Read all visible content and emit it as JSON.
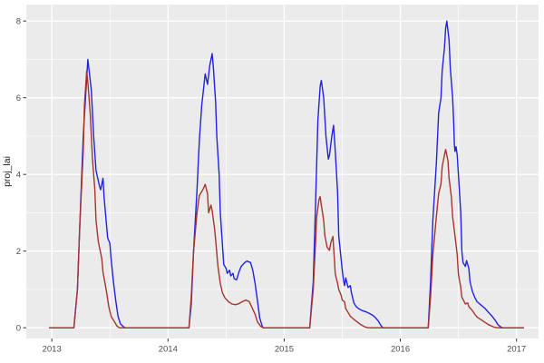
{
  "chart_data": {
    "type": "line",
    "title": "",
    "xlabel": "",
    "ylabel": "proj_lai",
    "grid": true,
    "legend_position": "none",
    "panel_bg": "#EBEBEB",
    "grid_color": "#FFFFFF",
    "tick_label_color": "#4D4D4D",
    "tick_mark_color": "#333333",
    "axis_title_color": "#1A1A1A",
    "x_domain": [
      2012.78,
      2017.19
    ],
    "y_domain": [
      -0.28,
      8.43
    ],
    "x_ticks": [
      2013,
      2014,
      2015,
      2016,
      2017
    ],
    "x_tick_labels": [
      "2013",
      "2014",
      "2015",
      "2016",
      "2017"
    ],
    "x_minor_ticks": [
      2013.5,
      2014.5,
      2015.5,
      2016.5
    ],
    "y_ticks": [
      0,
      2,
      4,
      6,
      8
    ],
    "y_tick_labels": [
      "0",
      "2",
      "4",
      "6",
      "8"
    ],
    "y_minor_ticks": [
      1,
      3,
      5,
      7
    ],
    "series": [
      {
        "name": "blue-series",
        "color": "#2121E2",
        "width": 1.4,
        "points": [
          [
            2012.98,
            0
          ],
          [
            2013.19,
            0
          ],
          [
            2013.22,
            1.0
          ],
          [
            2013.24,
            2.6
          ],
          [
            2013.27,
            5.0
          ],
          [
            2013.3,
            6.5
          ],
          [
            2013.31,
            7.0
          ],
          [
            2013.34,
            6.2
          ],
          [
            2013.36,
            5.0
          ],
          [
            2013.38,
            4.1
          ],
          [
            2013.41,
            3.7
          ],
          [
            2013.42,
            3.6
          ],
          [
            2013.44,
            3.9
          ],
          [
            2013.45,
            3.4
          ],
          [
            2013.47,
            2.7
          ],
          [
            2013.48,
            2.35
          ],
          [
            2013.5,
            2.2
          ],
          [
            2013.51,
            1.8
          ],
          [
            2013.53,
            1.2
          ],
          [
            2013.55,
            0.7
          ],
          [
            2013.57,
            0.3
          ],
          [
            2013.59,
            0.1
          ],
          [
            2013.62,
            0.02
          ],
          [
            2013.63,
            0
          ],
          [
            2014.18,
            0
          ],
          [
            2014.2,
            0.6
          ],
          [
            2014.22,
            2.0
          ],
          [
            2014.25,
            3.6
          ],
          [
            2014.27,
            4.9
          ],
          [
            2014.29,
            5.8
          ],
          [
            2014.32,
            6.62
          ],
          [
            2014.34,
            6.35
          ],
          [
            2014.36,
            6.85
          ],
          [
            2014.38,
            7.15
          ],
          [
            2014.39,
            6.8
          ],
          [
            2014.41,
            5.9
          ],
          [
            2014.42,
            5.0
          ],
          [
            2014.44,
            4.0
          ],
          [
            2014.45,
            3.0
          ],
          [
            2014.47,
            2.1
          ],
          [
            2014.48,
            1.65
          ],
          [
            2014.5,
            1.55
          ],
          [
            2014.51,
            1.42
          ],
          [
            2014.53,
            1.5
          ],
          [
            2014.54,
            1.35
          ],
          [
            2014.56,
            1.42
          ],
          [
            2014.57,
            1.28
          ],
          [
            2014.59,
            1.25
          ],
          [
            2014.61,
            1.45
          ],
          [
            2014.63,
            1.6
          ],
          [
            2014.66,
            1.7
          ],
          [
            2014.68,
            1.74
          ],
          [
            2014.71,
            1.7
          ],
          [
            2014.73,
            1.5
          ],
          [
            2014.75,
            1.15
          ],
          [
            2014.77,
            0.7
          ],
          [
            2014.79,
            0.25
          ],
          [
            2014.81,
            0.05
          ],
          [
            2014.82,
            0
          ],
          [
            2015.22,
            0
          ],
          [
            2015.25,
            1.2
          ],
          [
            2015.27,
            3.2
          ],
          [
            2015.29,
            5.4
          ],
          [
            2015.31,
            6.3
          ],
          [
            2015.32,
            6.45
          ],
          [
            2015.34,
            6.0
          ],
          [
            2015.36,
            5.0
          ],
          [
            2015.38,
            4.4
          ],
          [
            2015.39,
            4.5
          ],
          [
            2015.41,
            5.0
          ],
          [
            2015.425,
            5.28
          ],
          [
            2015.44,
            4.6
          ],
          [
            2015.46,
            3.5
          ],
          [
            2015.47,
            2.4
          ],
          [
            2015.49,
            1.8
          ],
          [
            2015.5,
            1.5
          ],
          [
            2015.51,
            1.25
          ],
          [
            2015.52,
            1.1
          ],
          [
            2015.53,
            1.3
          ],
          [
            2015.55,
            1.05
          ],
          [
            2015.57,
            1.1
          ],
          [
            2015.58,
            0.9
          ],
          [
            2015.6,
            0.65
          ],
          [
            2015.62,
            0.55
          ],
          [
            2015.64,
            0.5
          ],
          [
            2015.67,
            0.45
          ],
          [
            2015.7,
            0.42
          ],
          [
            2015.73,
            0.38
          ],
          [
            2015.76,
            0.33
          ],
          [
            2015.78,
            0.28
          ],
          [
            2015.81,
            0.18
          ],
          [
            2015.83,
            0.07
          ],
          [
            2015.85,
            0
          ],
          [
            2016.24,
            0
          ],
          [
            2016.26,
            1.2
          ],
          [
            2016.28,
            2.8
          ],
          [
            2016.31,
            4.3
          ],
          [
            2016.33,
            5.6
          ],
          [
            2016.35,
            6.0
          ],
          [
            2016.36,
            6.7
          ],
          [
            2016.38,
            7.3
          ],
          [
            2016.39,
            7.8
          ],
          [
            2016.4,
            8.0
          ],
          [
            2016.42,
            7.5
          ],
          [
            2016.43,
            6.8
          ],
          [
            2016.45,
            6.0
          ],
          [
            2016.46,
            5.3
          ],
          [
            2016.465,
            4.8
          ],
          [
            2016.47,
            4.6
          ],
          [
            2016.48,
            4.72
          ],
          [
            2016.49,
            4.5
          ],
          [
            2016.5,
            4.0
          ],
          [
            2016.52,
            3.0
          ],
          [
            2016.53,
            2.0
          ],
          [
            2016.54,
            1.7
          ],
          [
            2016.56,
            1.6
          ],
          [
            2016.57,
            1.75
          ],
          [
            2016.59,
            1.55
          ],
          [
            2016.6,
            1.2
          ],
          [
            2016.62,
            0.95
          ],
          [
            2016.64,
            0.8
          ],
          [
            2016.66,
            0.68
          ],
          [
            2016.7,
            0.58
          ],
          [
            2016.73,
            0.5
          ],
          [
            2016.76,
            0.4
          ],
          [
            2016.79,
            0.3
          ],
          [
            2016.82,
            0.18
          ],
          [
            2016.84,
            0.08
          ],
          [
            2016.87,
            0.01
          ],
          [
            2016.88,
            0
          ],
          [
            2017.06,
            0
          ]
        ]
      },
      {
        "name": "red-series",
        "color": "#A6342E",
        "width": 1.4,
        "points": [
          [
            2012.98,
            0
          ],
          [
            2013.19,
            0
          ],
          [
            2013.22,
            1.0
          ],
          [
            2013.24,
            2.6
          ],
          [
            2013.27,
            4.6
          ],
          [
            2013.28,
            5.8
          ],
          [
            2013.3,
            6.7
          ],
          [
            2013.31,
            6.4
          ],
          [
            2013.33,
            5.6
          ],
          [
            2013.35,
            4.4
          ],
          [
            2013.37,
            3.6
          ],
          [
            2013.38,
            2.8
          ],
          [
            2013.4,
            2.25
          ],
          [
            2013.41,
            2.1
          ],
          [
            2013.43,
            1.8
          ],
          [
            2013.44,
            1.45
          ],
          [
            2013.47,
            0.95
          ],
          [
            2013.49,
            0.55
          ],
          [
            2013.51,
            0.3
          ],
          [
            2013.54,
            0.15
          ],
          [
            2013.56,
            0.05
          ],
          [
            2013.58,
            0
          ],
          [
            2014.18,
            0
          ],
          [
            2014.2,
            0.8
          ],
          [
            2014.22,
            2.0
          ],
          [
            2014.25,
            3.0
          ],
          [
            2014.27,
            3.45
          ],
          [
            2014.3,
            3.6
          ],
          [
            2014.32,
            3.74
          ],
          [
            2014.34,
            3.5
          ],
          [
            2014.35,
            3.0
          ],
          [
            2014.37,
            3.2
          ],
          [
            2014.38,
            3.05
          ],
          [
            2014.4,
            2.6
          ],
          [
            2014.41,
            2.3
          ],
          [
            2014.43,
            1.6
          ],
          [
            2014.45,
            1.15
          ],
          [
            2014.47,
            0.9
          ],
          [
            2014.49,
            0.78
          ],
          [
            2014.52,
            0.68
          ],
          [
            2014.55,
            0.62
          ],
          [
            2014.58,
            0.6
          ],
          [
            2014.61,
            0.63
          ],
          [
            2014.64,
            0.68
          ],
          [
            2014.67,
            0.72
          ],
          [
            2014.7,
            0.68
          ],
          [
            2014.72,
            0.55
          ],
          [
            2014.75,
            0.35
          ],
          [
            2014.77,
            0.15
          ],
          [
            2014.8,
            0.03
          ],
          [
            2014.82,
            0
          ],
          [
            2015.22,
            0
          ],
          [
            2015.25,
            1.0
          ],
          [
            2015.27,
            2.2
          ],
          [
            2015.28,
            2.9
          ],
          [
            2015.3,
            3.35
          ],
          [
            2015.31,
            3.42
          ],
          [
            2015.32,
            3.2
          ],
          [
            2015.34,
            2.8
          ],
          [
            2015.35,
            2.4
          ],
          [
            2015.37,
            2.1
          ],
          [
            2015.39,
            2.02
          ],
          [
            2015.4,
            2.2
          ],
          [
            2015.42,
            2.38
          ],
          [
            2015.43,
            1.9
          ],
          [
            2015.44,
            1.4
          ],
          [
            2015.46,
            1.15
          ],
          [
            2015.47,
            1.0
          ],
          [
            2015.49,
            0.85
          ],
          [
            2015.5,
            0.72
          ],
          [
            2015.52,
            0.68
          ],
          [
            2015.53,
            0.5
          ],
          [
            2015.55,
            0.4
          ],
          [
            2015.57,
            0.3
          ],
          [
            2015.6,
            0.22
          ],
          [
            2015.63,
            0.15
          ],
          [
            2015.66,
            0.08
          ],
          [
            2015.69,
            0.03
          ],
          [
            2015.72,
            0
          ],
          [
            2016.24,
            0
          ],
          [
            2016.26,
            0.8
          ],
          [
            2016.28,
            1.9
          ],
          [
            2016.31,
            2.9
          ],
          [
            2016.33,
            3.5
          ],
          [
            2016.35,
            3.75
          ],
          [
            2016.36,
            4.2
          ],
          [
            2016.38,
            4.5
          ],
          [
            2016.39,
            4.65
          ],
          [
            2016.41,
            4.35
          ],
          [
            2016.42,
            3.9
          ],
          [
            2016.44,
            3.4
          ],
          [
            2016.45,
            2.9
          ],
          [
            2016.47,
            2.4
          ],
          [
            2016.49,
            1.9
          ],
          [
            2016.5,
            1.4
          ],
          [
            2016.52,
            1.05
          ],
          [
            2016.53,
            0.8
          ],
          [
            2016.55,
            0.68
          ],
          [
            2016.56,
            0.62
          ],
          [
            2016.58,
            0.65
          ],
          [
            2016.59,
            0.55
          ],
          [
            2016.62,
            0.45
          ],
          [
            2016.64,
            0.36
          ],
          [
            2016.66,
            0.28
          ],
          [
            2016.7,
            0.2
          ],
          [
            2016.73,
            0.14
          ],
          [
            2016.76,
            0.08
          ],
          [
            2016.79,
            0.04
          ],
          [
            2016.81,
            0.01
          ],
          [
            2016.84,
            0
          ],
          [
            2017.06,
            0
          ]
        ]
      }
    ]
  }
}
